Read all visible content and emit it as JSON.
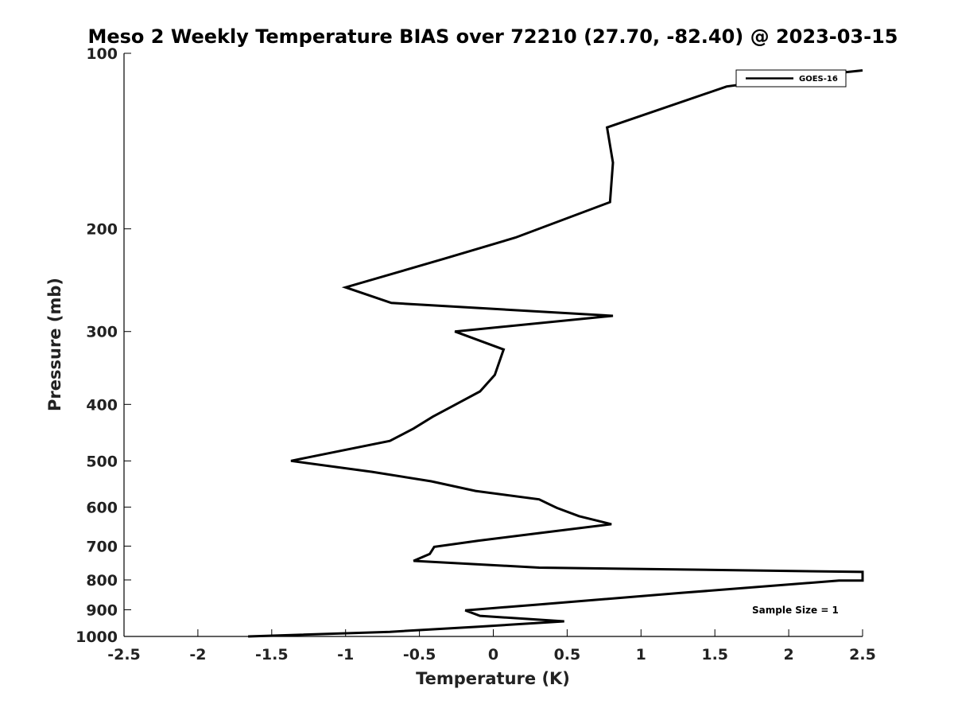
{
  "chart_data": {
    "type": "line",
    "title": "Meso 2 Weekly Temperature BIAS over 72210 (27.70, -82.40) @ 2023-03-15",
    "xlabel": "Temperature (K)",
    "ylabel": "Pressure (mb)",
    "xlim": [
      -2.5,
      2.5
    ],
    "ylim": [
      1000,
      100
    ],
    "y_scale": "log",
    "y_reversed": true,
    "grid": false,
    "x_ticks": [
      -2.5,
      -2,
      -1.5,
      -1,
      -0.5,
      0,
      0.5,
      1,
      1.5,
      2,
      2.5
    ],
    "x_tick_labels": [
      "-2.5",
      "-2",
      "-1.5",
      "-1",
      "-0.5",
      "0",
      "0.5",
      "1",
      "1.5",
      "2",
      "2.5"
    ],
    "y_ticks": [
      100,
      200,
      300,
      400,
      500,
      600,
      700,
      800,
      900,
      1000
    ],
    "y_tick_labels": [
      "100",
      "200",
      "300",
      "400",
      "500",
      "600",
      "700",
      "800",
      "900",
      "1000"
    ],
    "legend_position": "top-right",
    "annotation": "Sample Size = 1",
    "line_color": "#000000",
    "series": [
      {
        "name": "GOES-16",
        "points": [
          {
            "x": 2.5,
            "y": 107
          },
          {
            "x": 2.05,
            "y": 110
          },
          {
            "x": 1.58,
            "y": 114
          },
          {
            "x": 0.77,
            "y": 134
          },
          {
            "x": 0.81,
            "y": 154
          },
          {
            "x": 0.79,
            "y": 180
          },
          {
            "x": 0.15,
            "y": 207
          },
          {
            "x": -0.33,
            "y": 225
          },
          {
            "x": -1.0,
            "y": 252
          },
          {
            "x": -0.69,
            "y": 268
          },
          {
            "x": 0.81,
            "y": 282
          },
          {
            "x": -0.26,
            "y": 300
          },
          {
            "x": 0.07,
            "y": 322
          },
          {
            "x": 0.01,
            "y": 356
          },
          {
            "x": -0.09,
            "y": 380
          },
          {
            "x": -0.27,
            "y": 402
          },
          {
            "x": -0.41,
            "y": 420
          },
          {
            "x": -0.54,
            "y": 440
          },
          {
            "x": -0.7,
            "y": 462
          },
          {
            "x": -1.37,
            "y": 500
          },
          {
            "x": -0.82,
            "y": 522
          },
          {
            "x": -0.42,
            "y": 542
          },
          {
            "x": -0.12,
            "y": 563
          },
          {
            "x": 0.31,
            "y": 582
          },
          {
            "x": 0.43,
            "y": 602
          },
          {
            "x": 0.58,
            "y": 622
          },
          {
            "x": 0.8,
            "y": 642
          },
          {
            "x": 0.31,
            "y": 665
          },
          {
            "x": -0.1,
            "y": 685
          },
          {
            "x": -0.4,
            "y": 702
          },
          {
            "x": -0.43,
            "y": 722
          },
          {
            "x": -0.54,
            "y": 742
          },
          {
            "x": 0.31,
            "y": 762
          },
          {
            "x": 2.5,
            "y": 775
          },
          {
            "x": 2.5,
            "y": 802
          },
          {
            "x": 2.34,
            "y": 802
          },
          {
            "x": 1.27,
            "y": 842
          },
          {
            "x": 0.3,
            "y": 882
          },
          {
            "x": -0.19,
            "y": 902
          },
          {
            "x": -0.09,
            "y": 922
          },
          {
            "x": 0.48,
            "y": 942
          },
          {
            "x": -0.1,
            "y": 962
          },
          {
            "x": -0.7,
            "y": 982
          },
          {
            "x": -1.66,
            "y": 1000
          }
        ]
      }
    ]
  }
}
